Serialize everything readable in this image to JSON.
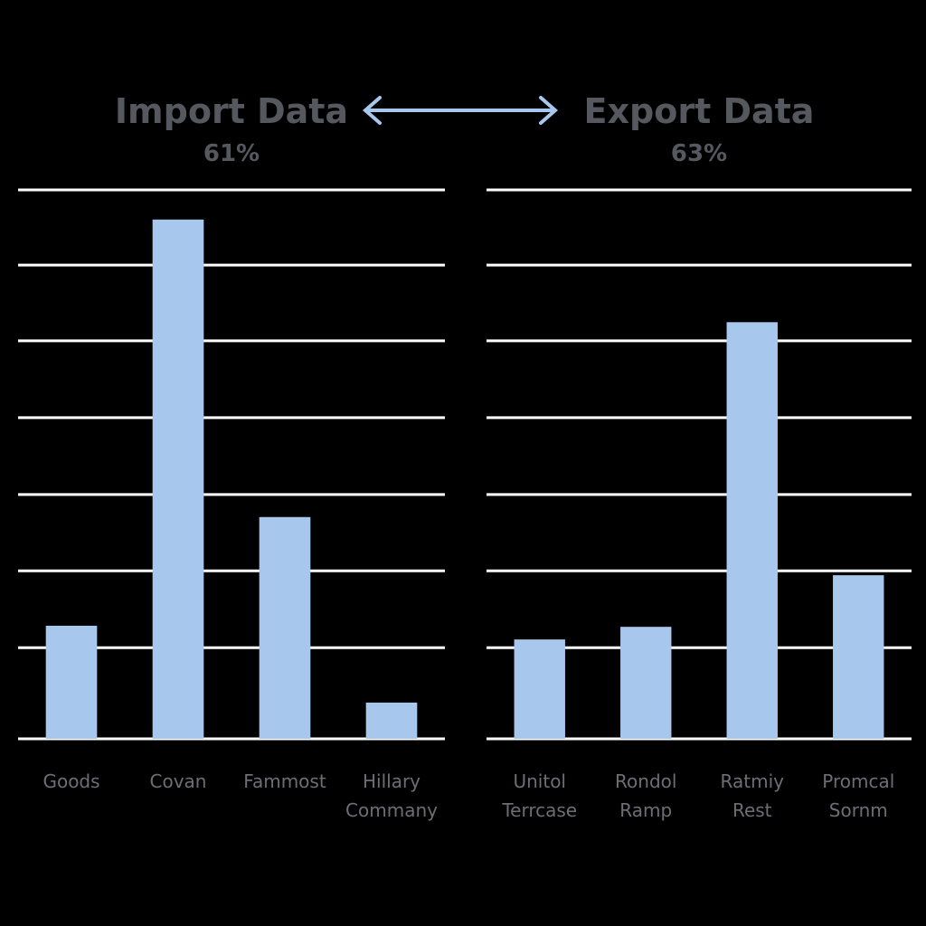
{
  "chart_data": [
    {
      "type": "bar",
      "title": "Import Data",
      "subtitle": "61%",
      "categories": [
        "Goods",
        "Covan",
        "Fammost",
        "Hillary Commany"
      ],
      "values": [
        20.6,
        94.6,
        40.4,
        6.6
      ],
      "color": "#a7c7ec",
      "ylim": [
        0,
        100
      ],
      "yticks": [
        16.6,
        30.6,
        44.5,
        58.5,
        72.5,
        86.3,
        100
      ],
      "grid": true
    },
    {
      "type": "bar",
      "title": "Export Data",
      "subtitle": "63%",
      "categories": [
        "Unitol Terrcase",
        "Rondol Ramp",
        "Ratmiy Rest",
        "Promcal Sornm"
      ],
      "values": [
        18.1,
        20.4,
        75.9,
        29.8
      ],
      "color": "#a7c7ec",
      "ylim": [
        0,
        100
      ],
      "yticks": [
        16.6,
        30.6,
        44.5,
        58.5,
        72.5,
        86.3,
        100
      ],
      "grid": true
    }
  ]
}
